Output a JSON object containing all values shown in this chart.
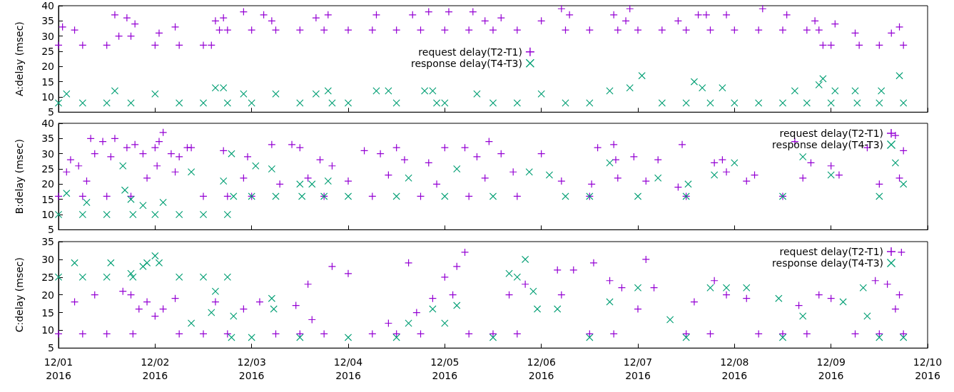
{
  "chart_data": [
    {
      "type": "scatter",
      "ylabel": "A:delay (msec)",
      "xlim": [
        "2016-12-01",
        "2016-12-10"
      ],
      "xticks": [
        {
          "value": "2016-12-01",
          "label": null
        },
        {
          "value": "2016-12-02",
          "label": null
        },
        {
          "value": "2016-12-03",
          "label": null
        },
        {
          "value": "2016-12-04",
          "label": null
        },
        {
          "value": "2016-12-05",
          "label": null
        },
        {
          "value": "2016-12-06",
          "label": null
        },
        {
          "value": "2016-12-07",
          "label": null
        },
        {
          "value": "2016-12-08",
          "label": null
        },
        {
          "value": "2016-12-09",
          "label": null
        },
        {
          "value": "2016-12-10",
          "label": null
        }
      ],
      "ylim": [
        5,
        40
      ],
      "yticks": [
        5,
        10,
        15,
        20,
        25,
        30,
        35,
        40
      ],
      "grid": false,
      "legend": "center",
      "tick_labels": "y",
      "series": [
        {
          "name": "request delay(T2-T1)",
          "color": "#9400d3",
          "marker": "plus",
          "x": [
            "2016-12-01T00:00",
            "2016-12-01T01:00",
            "2016-12-01T04:00",
            "2016-12-01T06:00",
            "2016-12-01T12:00",
            "2016-12-01T14:00",
            "2016-12-01T15:00",
            "2016-12-01T17:00",
            "2016-12-01T18:00",
            "2016-12-01T19:00",
            "2016-12-02T00:00",
            "2016-12-02T01:00",
            "2016-12-02T05:00",
            "2016-12-02T06:00",
            "2016-12-02T12:00",
            "2016-12-02T14:00",
            "2016-12-02T15:00",
            "2016-12-02T16:00",
            "2016-12-02T17:00",
            "2016-12-02T18:00",
            "2016-12-02T22:00",
            "2016-12-03T00:00",
            "2016-12-03T03:00",
            "2016-12-03T05:00",
            "2016-12-03T06:00",
            "2016-12-03T12:00",
            "2016-12-03T16:00",
            "2016-12-03T18:00",
            "2016-12-03T19:00",
            "2016-12-04T00:00",
            "2016-12-04T06:00",
            "2016-12-04T07:00",
            "2016-12-04T12:00",
            "2016-12-04T16:00",
            "2016-12-04T18:00",
            "2016-12-04T20:00",
            "2016-12-05T00:00",
            "2016-12-05T01:00",
            "2016-12-05T06:00",
            "2016-12-05T07:00",
            "2016-12-05T10:00",
            "2016-12-05T12:00",
            "2016-12-05T14:00",
            "2016-12-05T18:00",
            "2016-12-06T00:00",
            "2016-12-06T05:00",
            "2016-12-06T06:00",
            "2016-12-06T07:00",
            "2016-12-06T12:00",
            "2016-12-06T18:00",
            "2016-12-06T19:00",
            "2016-12-06T21:00",
            "2016-12-06T22:00",
            "2016-12-07T00:00",
            "2016-12-07T06:00",
            "2016-12-07T10:00",
            "2016-12-07T12:00",
            "2016-12-07T15:00",
            "2016-12-07T17:00",
            "2016-12-07T18:00",
            "2016-12-07T22:00",
            "2016-12-08T00:00",
            "2016-12-08T06:00",
            "2016-12-08T07:00",
            "2016-12-08T12:00",
            "2016-12-08T13:00",
            "2016-12-08T18:00",
            "2016-12-08T20:00",
            "2016-12-08T21:00",
            "2016-12-08T22:00",
            "2016-12-09T00:00",
            "2016-12-09T01:00",
            "2016-12-09T06:00",
            "2016-12-09T07:00",
            "2016-12-09T12:00",
            "2016-12-09T15:00",
            "2016-12-09T17:00",
            "2016-12-09T18:00"
          ],
          "values": [
            27,
            33,
            32,
            27,
            27,
            37,
            30,
            36,
            30,
            34,
            27,
            31,
            33,
            27,
            27,
            27,
            35,
            32,
            36,
            32,
            38,
            32,
            37,
            35,
            32,
            32,
            36,
            32,
            37,
            32,
            32,
            37,
            32,
            37,
            32,
            38,
            32,
            38,
            32,
            38,
            35,
            32,
            36,
            32,
            35,
            39,
            32,
            37,
            32,
            37,
            32,
            35,
            39,
            32,
            32,
            35,
            32,
            37,
            37,
            32,
            37,
            32,
            32,
            39,
            32,
            37,
            32,
            35,
            32,
            27,
            27,
            34,
            31,
            27,
            27,
            31,
            33,
            27
          ]
        },
        {
          "name": "response delay(T4-T3)",
          "color": "#009e73",
          "marker": "cross",
          "x": [
            "2016-12-01T00:00",
            "2016-12-01T02:00",
            "2016-12-01T06:00",
            "2016-12-01T12:00",
            "2016-12-01T14:00",
            "2016-12-01T18:00",
            "2016-12-02T00:00",
            "2016-12-02T06:00",
            "2016-12-02T12:00",
            "2016-12-02T15:00",
            "2016-12-02T17:00",
            "2016-12-02T18:00",
            "2016-12-02T22:00",
            "2016-12-03T00:00",
            "2016-12-03T06:00",
            "2016-12-03T12:00",
            "2016-12-03T16:00",
            "2016-12-03T19:00",
            "2016-12-03T20:00",
            "2016-12-04T00:00",
            "2016-12-04T07:00",
            "2016-12-04T10:00",
            "2016-12-04T12:00",
            "2016-12-04T19:00",
            "2016-12-04T21:00",
            "2016-12-04T22:00",
            "2016-12-05T00:00",
            "2016-12-05T08:00",
            "2016-12-05T12:00",
            "2016-12-05T18:00",
            "2016-12-06T00:00",
            "2016-12-06T06:00",
            "2016-12-06T12:00",
            "2016-12-06T17:00",
            "2016-12-06T22:00",
            "2016-12-07T01:00",
            "2016-12-07T06:00",
            "2016-12-07T12:00",
            "2016-12-07T14:00",
            "2016-12-07T16:00",
            "2016-12-07T18:00",
            "2016-12-07T21:00",
            "2016-12-08T00:00",
            "2016-12-08T06:00",
            "2016-12-08T12:00",
            "2016-12-08T15:00",
            "2016-12-08T18:00",
            "2016-12-08T21:00",
            "2016-12-08T22:00",
            "2016-12-09T00:00",
            "2016-12-09T01:00",
            "2016-12-09T06:00",
            "2016-12-09T06:30",
            "2016-12-09T12:00",
            "2016-12-09T12:30",
            "2016-12-09T17:00",
            "2016-12-09T18:00"
          ],
          "values": [
            8,
            11,
            8,
            8,
            12,
            8,
            11,
            8,
            8,
            13,
            13,
            8,
            11,
            8,
            11,
            8,
            11,
            12,
            8,
            8,
            12,
            12,
            8,
            12,
            12,
            8,
            8,
            11,
            8,
            8,
            11,
            8,
            8,
            12,
            13,
            17,
            8,
            8,
            15,
            13,
            8,
            13,
            8,
            8,
            8,
            12,
            8,
            14,
            16,
            8,
            12,
            12,
            8,
            8,
            12,
            17,
            8
          ]
        }
      ]
    },
    {
      "type": "scatter",
      "ylabel": "B:delay (msec)",
      "xlim": [
        "2016-12-01",
        "2016-12-10"
      ],
      "xticks": [
        {
          "value": "2016-12-01",
          "label": null
        },
        {
          "value": "2016-12-02",
          "label": null
        },
        {
          "value": "2016-12-03",
          "label": null
        },
        {
          "value": "2016-12-04",
          "label": null
        },
        {
          "value": "2016-12-05",
          "label": null
        },
        {
          "value": "2016-12-06",
          "label": null
        },
        {
          "value": "2016-12-07",
          "label": null
        },
        {
          "value": "2016-12-08",
          "label": null
        },
        {
          "value": "2016-12-09",
          "label": null
        },
        {
          "value": "2016-12-10",
          "label": null
        }
      ],
      "ylim": [
        5,
        40
      ],
      "yticks": [
        5,
        10,
        15,
        20,
        25,
        30,
        35,
        40
      ],
      "grid": false,
      "legend": "top right",
      "tick_labels": "y",
      "series": [
        {
          "name": "request delay(T2-T1)",
          "color": "#9400d3",
          "marker": "plus",
          "x": [
            "2016-12-01T00:00",
            "2016-12-01T02:00",
            "2016-12-01T03:00",
            "2016-12-01T05:00",
            "2016-12-01T06:00",
            "2016-12-01T07:00",
            "2016-12-01T08:00",
            "2016-12-01T09:00",
            "2016-12-01T11:00",
            "2016-12-01T12:00",
            "2016-12-01T13:00",
            "2016-12-01T14:00",
            "2016-12-01T17:00",
            "2016-12-01T18:00",
            "2016-12-01T19:00",
            "2016-12-01T21:00",
            "2016-12-01T22:00",
            "2016-12-02T00:00",
            "2016-12-02T00:30",
            "2016-12-02T01:00",
            "2016-12-02T02:00",
            "2016-12-02T04:00",
            "2016-12-02T05:00",
            "2016-12-02T06:00",
            "2016-12-02T08:00",
            "2016-12-02T09:00",
            "2016-12-02T12:00",
            "2016-12-02T17:00",
            "2016-12-02T18:00",
            "2016-12-02T22:00",
            "2016-12-02T23:00",
            "2016-12-03T00:00",
            "2016-12-03T05:00",
            "2016-12-03T07:00",
            "2016-12-03T10:00",
            "2016-12-03T12:00",
            "2016-12-03T14:00",
            "2016-12-03T17:00",
            "2016-12-03T18:00",
            "2016-12-03T20:00",
            "2016-12-04T00:00",
            "2016-12-04T04:00",
            "2016-12-04T06:00",
            "2016-12-04T08:00",
            "2016-12-04T10:00",
            "2016-12-04T12:00",
            "2016-12-04T14:00",
            "2016-12-04T18:00",
            "2016-12-04T20:00",
            "2016-12-04T22:00",
            "2016-12-05T00:00",
            "2016-12-05T05:00",
            "2016-12-05T06:00",
            "2016-12-05T08:00",
            "2016-12-05T10:00",
            "2016-12-05T11:00",
            "2016-12-05T14:00",
            "2016-12-05T17:00",
            "2016-12-05T18:00",
            "2016-12-06T00:00",
            "2016-12-06T05:00",
            "2016-12-06T12:00",
            "2016-12-06T12:30",
            "2016-12-06T14:00",
            "2016-12-06T18:00",
            "2016-12-06T18:30",
            "2016-12-06T19:00",
            "2016-12-06T23:00",
            "2016-12-07T02:00",
            "2016-12-07T05:00",
            "2016-12-07T10:00",
            "2016-12-07T11:00",
            "2016-12-07T12:00",
            "2016-12-07T19:00",
            "2016-12-07T21:00",
            "2016-12-07T22:00",
            "2016-12-08T03:00",
            "2016-12-08T05:00",
            "2016-12-08T12:00",
            "2016-12-08T15:00",
            "2016-12-08T17:00",
            "2016-12-08T19:00",
            "2016-12-09T00:00",
            "2016-12-09T02:00",
            "2016-12-09T09:00",
            "2016-12-09T12:00",
            "2016-12-09T16:00",
            "2016-12-09T17:00",
            "2016-12-09T18:00"
          ],
          "values": [
            16,
            24,
            28,
            26,
            16,
            21,
            35,
            30,
            34,
            16,
            29,
            35,
            32,
            16,
            33,
            30,
            22,
            32,
            26,
            34,
            37,
            30,
            24,
            29,
            32,
            32,
            16,
            31,
            16,
            22,
            29,
            16,
            33,
            20,
            33,
            32,
            22,
            28,
            16,
            26,
            21,
            31,
            16,
            30,
            23,
            32,
            28,
            16,
            27,
            20,
            32,
            32,
            16,
            29,
            22,
            34,
            30,
            24,
            16,
            30,
            21,
            16,
            20,
            32,
            33,
            28,
            22,
            29,
            21,
            28,
            19,
            33,
            16,
            27,
            28,
            24,
            21,
            23,
            16,
            34,
            22,
            27,
            26,
            23,
            32,
            20,
            36,
            22,
            31
          ]
        },
        {
          "name": "response delay(T4-T3)",
          "color": "#009e73",
          "marker": "cross",
          "x": [
            "2016-12-01T00:00",
            "2016-12-01T02:00",
            "2016-12-01T06:00",
            "2016-12-01T07:00",
            "2016-12-01T12:00",
            "2016-12-01T16:00",
            "2016-12-01T16:30",
            "2016-12-01T18:00",
            "2016-12-01T18:30",
            "2016-12-01T21:00",
            "2016-12-02T00:00",
            "2016-12-02T02:00",
            "2016-12-02T06:00",
            "2016-12-02T09:00",
            "2016-12-02T12:00",
            "2016-12-02T17:00",
            "2016-12-02T18:00",
            "2016-12-02T19:00",
            "2016-12-02T19:30",
            "2016-12-03T00:00",
            "2016-12-03T01:00",
            "2016-12-03T05:00",
            "2016-12-03T06:00",
            "2016-12-03T12:00",
            "2016-12-03T12:30",
            "2016-12-03T15:00",
            "2016-12-03T18:00",
            "2016-12-03T19:00",
            "2016-12-04T00:00",
            "2016-12-04T12:00",
            "2016-12-04T15:00",
            "2016-12-05T00:00",
            "2016-12-05T03:00",
            "2016-12-05T12:00",
            "2016-12-05T21:00",
            "2016-12-06T02:00",
            "2016-12-06T06:00",
            "2016-12-06T12:00",
            "2016-12-06T17:00",
            "2016-12-07T00:00",
            "2016-12-07T05:00",
            "2016-12-07T12:00",
            "2016-12-07T12:30",
            "2016-12-07T19:00",
            "2016-12-08T00:00",
            "2016-12-08T12:00",
            "2016-12-08T17:00",
            "2016-12-09T00:00",
            "2016-12-09T12:00",
            "2016-12-09T16:00",
            "2016-12-09T18:00"
          ],
          "values": [
            10,
            17,
            10,
            14,
            10,
            26,
            18,
            15,
            10,
            13,
            10,
            14,
            10,
            24,
            10,
            21,
            10,
            30,
            16,
            16,
            26,
            25,
            16,
            20,
            16,
            20,
            16,
            21,
            16,
            16,
            22,
            16,
            25,
            16,
            24,
            23,
            16,
            16,
            27,
            16,
            22,
            16,
            20,
            23,
            27,
            16,
            29,
            23,
            16,
            27,
            20
          ]
        }
      ]
    },
    {
      "type": "scatter",
      "ylabel": "C:delay (msec)",
      "xlim": [
        "2016-12-01",
        "2016-12-10"
      ],
      "xticks": [
        {
          "value": "2016-12-01",
          "label": "12/01\n2016"
        },
        {
          "value": "2016-12-02",
          "label": "12/02\n2016"
        },
        {
          "value": "2016-12-03",
          "label": "12/03\n2016"
        },
        {
          "value": "2016-12-04",
          "label": "12/04\n2016"
        },
        {
          "value": "2016-12-05",
          "label": "12/05\n2016"
        },
        {
          "value": "2016-12-06",
          "label": "12/06\n2016"
        },
        {
          "value": "2016-12-07",
          "label": "12/07\n2016"
        },
        {
          "value": "2016-12-08",
          "label": "12/08\n2016"
        },
        {
          "value": "2016-12-09",
          "label": "12/09\n2016"
        },
        {
          "value": "2016-12-10",
          "label": "12/10\n2016"
        }
      ],
      "ylim": [
        5,
        35
      ],
      "yticks": [
        5,
        10,
        15,
        20,
        25,
        30,
        35
      ],
      "grid": false,
      "legend": "top right",
      "series": [
        {
          "name": "request delay(T2-T1)",
          "color": "#9400d3",
          "marker": "plus",
          "x": [
            "2016-12-01T00:00",
            "2016-12-01T04:00",
            "2016-12-01T06:00",
            "2016-12-01T09:00",
            "2016-12-01T12:00",
            "2016-12-01T16:00",
            "2016-12-01T18:00",
            "2016-12-01T18:30",
            "2016-12-01T20:00",
            "2016-12-01T22:00",
            "2016-12-02T00:00",
            "2016-12-02T02:00",
            "2016-12-02T05:00",
            "2016-12-02T06:00",
            "2016-12-02T12:00",
            "2016-12-02T15:00",
            "2016-12-02T18:00",
            "2016-12-02T22:00",
            "2016-12-03T02:00",
            "2016-12-03T06:00",
            "2016-12-03T11:00",
            "2016-12-03T12:00",
            "2016-12-03T14:00",
            "2016-12-03T15:00",
            "2016-12-03T18:00",
            "2016-12-03T20:00",
            "2016-12-04T00:00",
            "2016-12-04T06:00",
            "2016-12-04T10:00",
            "2016-12-04T12:00",
            "2016-12-04T15:00",
            "2016-12-04T17:00",
            "2016-12-04T18:00",
            "2016-12-04T21:00",
            "2016-12-05T00:00",
            "2016-12-05T02:00",
            "2016-12-05T03:00",
            "2016-12-05T05:00",
            "2016-12-05T06:00",
            "2016-12-05T12:00",
            "2016-12-05T16:00",
            "2016-12-05T18:00",
            "2016-12-05T20:00",
            "2016-12-06T04:00",
            "2016-12-06T05:00",
            "2016-12-06T08:00",
            "2016-12-06T12:00",
            "2016-12-06T13:00",
            "2016-12-06T17:00",
            "2016-12-06T18:00",
            "2016-12-06T20:00",
            "2016-12-07T00:00",
            "2016-12-07T02:00",
            "2016-12-07T04:00",
            "2016-12-07T12:00",
            "2016-12-07T14:00",
            "2016-12-07T18:00",
            "2016-12-07T19:00",
            "2016-12-07T22:00",
            "2016-12-08T03:00",
            "2016-12-08T06:00",
            "2016-12-08T12:00",
            "2016-12-08T16:00",
            "2016-12-08T18:00",
            "2016-12-08T21:00",
            "2016-12-09T00:00",
            "2016-12-09T06:00",
            "2016-12-09T11:00",
            "2016-12-09T12:00",
            "2016-12-09T14:00",
            "2016-12-09T16:00",
            "2016-12-09T17:00",
            "2016-12-09T17:30",
            "2016-12-09T18:00"
          ],
          "values": [
            9,
            18,
            9,
            20,
            9,
            21,
            20,
            9,
            16,
            18,
            14,
            16,
            19,
            9,
            9,
            18,
            9,
            16,
            18,
            9,
            17,
            9,
            23,
            13,
            9,
            28,
            26,
            9,
            12,
            9,
            29,
            15,
            9,
            19,
            25,
            20,
            28,
            32,
            9,
            9,
            20,
            9,
            23,
            27,
            20,
            27,
            9,
            29,
            24,
            9,
            22,
            16,
            30,
            22,
            9,
            18,
            9,
            24,
            20,
            19,
            9,
            9,
            17,
            9,
            20,
            19,
            9,
            24,
            9,
            23,
            16,
            20,
            32,
            9
          ]
        },
        {
          "name": "response delay(T4-T3)",
          "color": "#009e73",
          "marker": "cross",
          "x": [
            "2016-12-01T00:00",
            "2016-12-01T04:00",
            "2016-12-01T06:00",
            "2016-12-01T12:00",
            "2016-12-01T13:00",
            "2016-12-01T18:00",
            "2016-12-01T18:30",
            "2016-12-01T21:00",
            "2016-12-01T22:00",
            "2016-12-02T00:00",
            "2016-12-02T01:00",
            "2016-12-02T06:00",
            "2016-12-02T09:00",
            "2016-12-02T12:00",
            "2016-12-02T14:00",
            "2016-12-02T15:00",
            "2016-12-02T18:00",
            "2016-12-02T19:00",
            "2016-12-02T19:30",
            "2016-12-03T00:00",
            "2016-12-03T05:00",
            "2016-12-03T05:30",
            "2016-12-03T12:00",
            "2016-12-04T00:00",
            "2016-12-04T12:00",
            "2016-12-04T15:00",
            "2016-12-04T21:00",
            "2016-12-05T00:00",
            "2016-12-05T03:00",
            "2016-12-05T12:00",
            "2016-12-05T16:00",
            "2016-12-05T18:00",
            "2016-12-05T20:00",
            "2016-12-05T22:00",
            "2016-12-05T23:00",
            "2016-12-06T04:00",
            "2016-12-06T12:00",
            "2016-12-06T17:00",
            "2016-12-07T00:00",
            "2016-12-07T08:00",
            "2016-12-07T12:00",
            "2016-12-07T18:00",
            "2016-12-07T22:00",
            "2016-12-08T03:00",
            "2016-12-08T11:00",
            "2016-12-08T12:00",
            "2016-12-08T17:00",
            "2016-12-09T03:00",
            "2016-12-09T08:00",
            "2016-12-09T09:00",
            "2016-12-09T12:00",
            "2016-12-09T18:00"
          ],
          "values": [
            25,
            29,
            25,
            25,
            29,
            26,
            25,
            28,
            29,
            31,
            29,
            25,
            12,
            25,
            15,
            21,
            25,
            8,
            14,
            8,
            19,
            16,
            8,
            8,
            8,
            12,
            16,
            12,
            17,
            8,
            26,
            25,
            30,
            21,
            16,
            16,
            8,
            18,
            22,
            13,
            8,
            22,
            22,
            22,
            19,
            8,
            14,
            18,
            22,
            14,
            8,
            8
          ]
        }
      ]
    }
  ]
}
